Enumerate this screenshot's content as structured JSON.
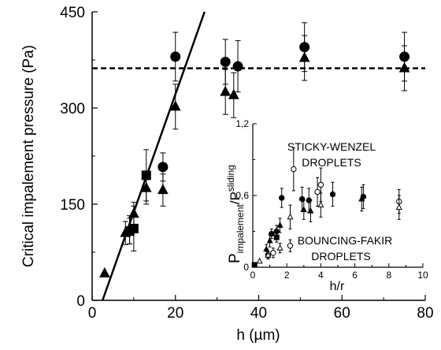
{
  "chart_data": [
    {
      "type": "scatter",
      "xlabel": "h  (µm)",
      "ylabel": "Critical impalement pressure  (Pa)",
      "xlim": [
        0,
        80
      ],
      "ylim": [
        0,
        450
      ],
      "xticks": [
        "0",
        "20",
        "40",
        "60",
        "80"
      ],
      "yticks": [
        "0",
        "150",
        "300",
        "450"
      ],
      "grid": false,
      "series": [
        {
          "marker": "circle",
          "points": [
            {
              "x": 17,
              "y": 208,
              "err": 22
            },
            {
              "x": 20,
              "y": 380,
              "err": 38
            },
            {
              "x": 32,
              "y": 372,
              "err": 35
            },
            {
              "x": 35,
              "y": 365,
              "err": 40
            },
            {
              "x": 51,
              "y": 395,
              "err": 38
            },
            {
              "x": 75,
              "y": 380,
              "err": 38
            }
          ]
        },
        {
          "marker": "triangle",
          "points": [
            {
              "x": 3,
              "y": 42,
              "err": 0
            },
            {
              "x": 8,
              "y": 105,
              "err": 18
            },
            {
              "x": 9,
              "y": 110,
              "err": 22
            },
            {
              "x": 10,
              "y": 135,
              "err": 18
            },
            {
              "x": 13,
              "y": 175,
              "err": 25
            },
            {
              "x": 17,
              "y": 172,
              "err": 25
            },
            {
              "x": 20,
              "y": 302,
              "err": 35
            },
            {
              "x": 32,
              "y": 325,
              "err": 35
            },
            {
              "x": 34,
              "y": 320,
              "err": 35
            },
            {
              "x": 51,
              "y": 378,
              "err": 35
            },
            {
              "x": 75,
              "y": 362,
              "err": 35
            }
          ]
        },
        {
          "marker": "square",
          "points": [
            {
              "x": 9,
              "y": 108,
              "err": 20
            },
            {
              "x": 10,
              "y": 112,
              "err": 35
            },
            {
              "x": 13,
              "y": 195,
              "err": 40
            }
          ]
        }
      ],
      "lines": [
        {
          "style": "solid",
          "from": [
            2.5,
            0
          ],
          "to": [
            27,
            450
          ]
        },
        {
          "style": "dashed",
          "y": 362
        }
      ]
    },
    {
      "type": "scatter",
      "xlabel": "h/r",
      "ylabel_main": "P",
      "ylabel_sub": "impalement",
      "ylabel_mid": "/P",
      "ylabel_sup": "sliding",
      "xlim": [
        0,
        10
      ],
      "ylim": [
        0,
        1.2
      ],
      "xticks": [
        "0",
        "2",
        "4",
        "6",
        "8",
        "10"
      ],
      "yticks": [
        "0",
        "0,6",
        "1,2"
      ],
      "annotations": {
        "top_line1": "STICKY-WENZEL",
        "top_line2": "DROPLETS",
        "bottom_line1": "BOUNCING-FAKIR",
        "bottom_line2": "DROPLETS"
      },
      "series": [
        {
          "marker": "filled-circle",
          "points": [
            {
              "x": 1.1,
              "y": 0.28,
              "err": 0.04
            },
            {
              "x": 1.4,
              "y": 0.3,
              "err": 0.05
            },
            {
              "x": 1.7,
              "y": 0.58,
              "err": 0.08
            },
            {
              "x": 2.9,
              "y": 0.57,
              "err": 0.1
            },
            {
              "x": 3.3,
              "y": 0.56,
              "err": 0.1
            },
            {
              "x": 4.7,
              "y": 0.61,
              "err": 0.1
            },
            {
              "x": 6.5,
              "y": 0.59,
              "err": 0.1
            }
          ]
        },
        {
          "marker": "open-circle",
          "points": [
            {
              "x": 0.9,
              "y": 0.1,
              "err": 0.03
            },
            {
              "x": 1.2,
              "y": 0.12,
              "err": 0.04
            },
            {
              "x": 2.2,
              "y": 0.18,
              "err": 0.05
            },
            {
              "x": 2.4,
              "y": 0.82,
              "err": 0.18
            },
            {
              "x": 3.8,
              "y": 0.63,
              "err": 0.12
            },
            {
              "x": 4.0,
              "y": 0.69,
              "err": 0.14
            },
            {
              "x": 8.6,
              "y": 0.55,
              "err": 0.1
            }
          ]
        },
        {
          "marker": "filled-triangle",
          "points": [
            {
              "x": 0.8,
              "y": 0.15,
              "err": 0.04
            },
            {
              "x": 1.0,
              "y": 0.22,
              "err": 0.05
            },
            {
              "x": 1.6,
              "y": 0.35,
              "err": 0.06
            },
            {
              "x": 3.0,
              "y": 0.48,
              "err": 0.08
            },
            {
              "x": 3.4,
              "y": 0.47,
              "err": 0.09
            },
            {
              "x": 6.4,
              "y": 0.57,
              "err": 0.1
            }
          ]
        },
        {
          "marker": "open-triangle",
          "points": [
            {
              "x": 0.4,
              "y": 0.05,
              "err": 0
            },
            {
              "x": 0.9,
              "y": 0.1,
              "err": 0.03
            },
            {
              "x": 1.6,
              "y": 0.16,
              "err": 0.04
            },
            {
              "x": 2.2,
              "y": 0.42,
              "err": 0.1
            },
            {
              "x": 4.0,
              "y": 0.52,
              "err": 0.1
            },
            {
              "x": 8.6,
              "y": 0.5,
              "err": 0.1
            }
          ]
        },
        {
          "marker": "filled-square",
          "points": [
            {
              "x": 0.1,
              "y": 0.02,
              "err": 0
            },
            {
              "x": 1.4,
              "y": 0.25,
              "err": 0.04
            }
          ]
        }
      ]
    }
  ]
}
